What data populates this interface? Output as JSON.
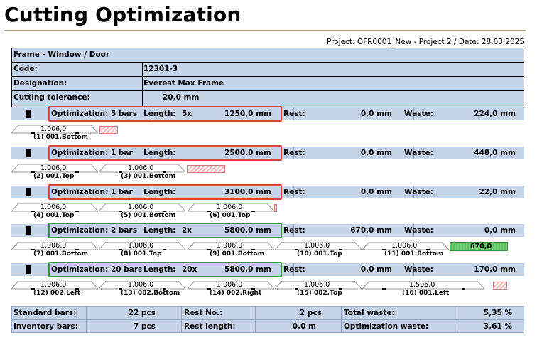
{
  "title": "Cutting Optimization",
  "project_line": "Project: OFR0001_New - Project 2 / Date: 28.03.2025",
  "header": {
    "section": "Frame - Window / Door",
    "code_label": "Code:",
    "code_value": "12301-3",
    "designation_label": "Designation:",
    "designation_value": "Everest Max Frame",
    "tolerance_label": "Cutting tolerance:",
    "tolerance_value": "20,0 mm"
  },
  "labels": {
    "rest": "Rest:",
    "waste": "Waste:",
    "length": "Length:"
  },
  "bars": [
    {
      "optimization": "Optimization: 5 bars",
      "qty": "5x",
      "length": "1250,0 mm",
      "rest": "0,0 mm",
      "waste": "224,0 mm",
      "highlight": "red"
    },
    {
      "optimization": "Optimization:     1 bar",
      "qty": "",
      "length": "2500,0 mm",
      "rest": "0,0 mm",
      "waste": "448,0 mm",
      "highlight": "red"
    },
    {
      "optimization": "Optimization:     1 bar",
      "qty": "",
      "length": "3100,0 mm",
      "rest": "0,0 mm",
      "waste": "22,0 mm",
      "highlight": "red"
    },
    {
      "optimization": "Optimization: 2 bars",
      "qty": "2x",
      "length": "5800,0 mm",
      "rest": "670,0 mm",
      "waste": "0,0 mm",
      "highlight": "green"
    },
    {
      "optimization": "Optimization: 20 bars",
      "qty": "20x",
      "length": "5800,0 mm",
      "rest": "0,0 mm",
      "waste": "170,0 mm",
      "highlight": "green"
    }
  ],
  "pieces": [
    [
      {
        "value": "1.006,0",
        "label": "(1) 001.Bottom"
      }
    ],
    [
      {
        "value": "1.006,0",
        "label": "(2) 001.Top"
      },
      {
        "value": "1.006,0",
        "label": "(3) 001.Bottom"
      }
    ],
    [
      {
        "value": "1.006,0",
        "label": "(4) 001.Top"
      },
      {
        "value": "1.006,0",
        "label": "(5) 001.Bottom"
      },
      {
        "value": "1.006,0",
        "label": "(6) 001.Top"
      }
    ],
    [
      {
        "value": "1.006,0",
        "label": "(7) 001.Bottom"
      },
      {
        "value": "1.006,0",
        "label": "(8) 001.Top"
      },
      {
        "value": "1.006,0",
        "label": "(9) 001.Bottom"
      },
      {
        "value": "1.006,0",
        "label": "(10) 001.Top"
      },
      {
        "value": "1.006,0",
        "label": "(11) 001.Bottom"
      }
    ],
    [
      {
        "value": "1.006,0",
        "label": "(12) 002.Left"
      },
      {
        "value": "1.006,0",
        "label": "(13) 002.Bottom"
      },
      {
        "value": "1.006,0",
        "label": "(14) 002.Right"
      },
      {
        "value": "1.006,0",
        "label": "(15) 002.Top"
      },
      {
        "value": "1.506,0",
        "label": "(16) 001.Left"
      }
    ]
  ],
  "rest_piece_value": "670,0",
  "footer": {
    "standard_bars_label": "Standard bars:",
    "standard_bars_value": "22 pcs",
    "inventory_bars_label": "Inventory bars:",
    "inventory_bars_value": "7 pcs",
    "rest_no_label": "Rest No.:",
    "rest_no_value": "2 pcs",
    "rest_length_label": "Rest length:",
    "rest_length_value": "0,0 m",
    "total_waste_label": "Total waste:",
    "total_waste_value": "5,35 %",
    "optimization_waste_label": "Optimization waste:",
    "optimization_waste_value": "3,61 %"
  },
  "colors": {
    "row_bg": "#c6d4ea",
    "highlight_red": "#d9453a",
    "highlight_green": "#2f9a3a"
  }
}
